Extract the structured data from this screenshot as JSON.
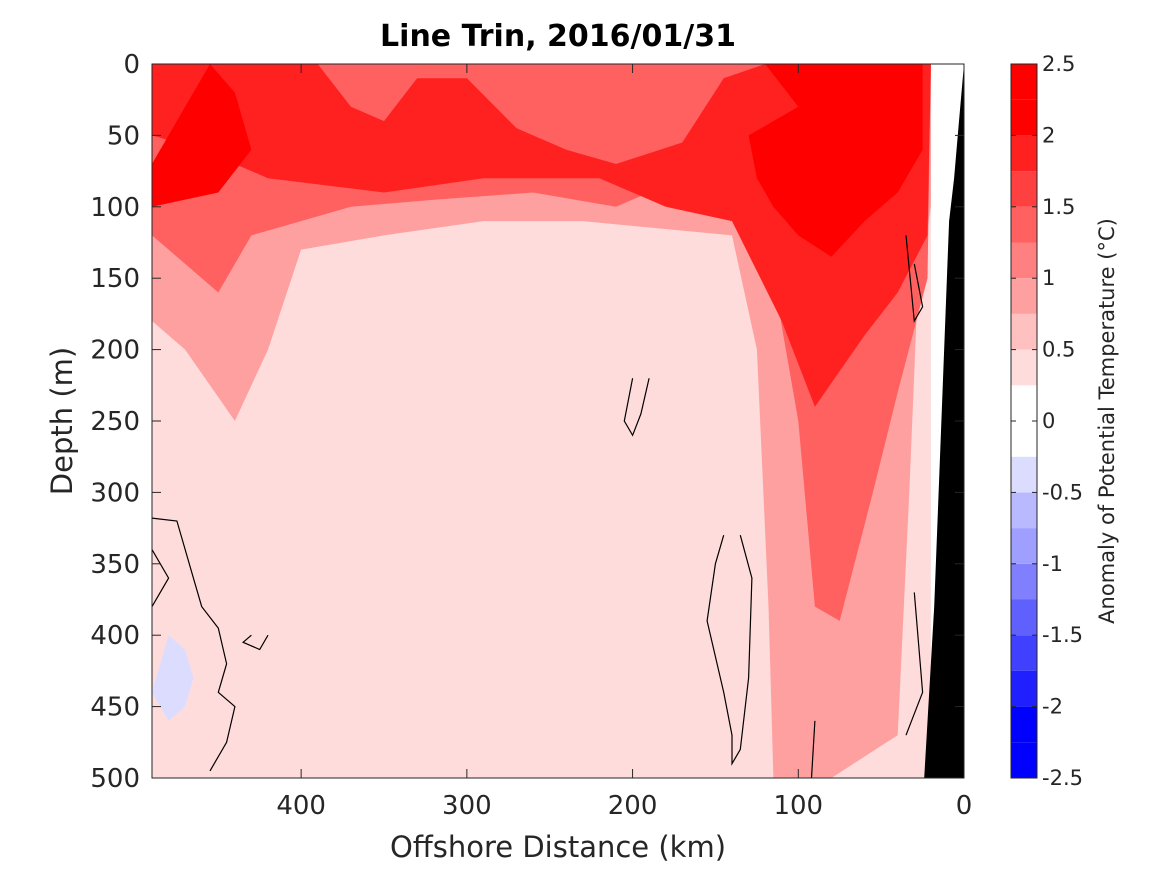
{
  "chart_data": {
    "type": "heatmap",
    "title": "Line Trin, 2016/01/31",
    "xlabel": "Offshore Distance (km)",
    "ylabel": "Depth (m)",
    "colorbar_label": "Anomaly of Potential Temperature (°C)",
    "xlim": [
      490,
      0
    ],
    "ylim": [
      0,
      500
    ],
    "x_reversed": true,
    "y_reversed": true,
    "x_ticks": [
      "400",
      "300",
      "200",
      "100",
      "0"
    ],
    "x_tick_values": [
      400,
      300,
      200,
      100,
      0
    ],
    "y_ticks": [
      "0",
      "50",
      "100",
      "150",
      "200",
      "250",
      "300",
      "350",
      "400",
      "450",
      "500"
    ],
    "y_tick_values": [
      0,
      50,
      100,
      150,
      200,
      250,
      300,
      350,
      400,
      450,
      500
    ],
    "colorbar_ticks": [
      "2.5",
      "2",
      "1.5",
      "1",
      "0.5",
      "0",
      "-0.5",
      "-1",
      "-1.5",
      "-2",
      "-2.5"
    ],
    "colorbar_tick_values": [
      2.5,
      2,
      1.5,
      1,
      0.5,
      0,
      -0.5,
      -1,
      -1.5,
      -2,
      -2.5
    ],
    "colorbar_limits": [
      -2.5,
      2.5
    ],
    "contour_levels": [
      -2.5,
      -2.25,
      -2,
      -1.75,
      -1.5,
      -1.25,
      -1,
      -0.75,
      -0.5,
      -0.25,
      0.25,
      0.5,
      0.75,
      1,
      1.25,
      1.5,
      1.75,
      2,
      2.25,
      2.5
    ],
    "colors": {
      "neg": [
        "#0000ff",
        "#2020ff",
        "#4040ff",
        "#6060ff",
        "#8080ff",
        "#9f9fff",
        "#b9b9ff",
        "#dcdcff"
      ],
      "zero": "#ffffff",
      "pos": [
        "#ffdcdc",
        "#ffc0c0",
        "#ffa0a0",
        "#ff8080",
        "#ff6060",
        "#ff4040",
        "#ff2020",
        "#ff0000"
      ],
      "bathymetry": "#000000"
    },
    "regions": [
      {
        "level": 0.25,
        "points": [
          [
            490,
            0
          ],
          [
            20,
            0
          ],
          [
            20,
            500
          ],
          [
            490,
            500
          ]
        ]
      },
      {
        "level": 0.75,
        "points": [
          [
            490,
            0
          ],
          [
            20,
            0
          ],
          [
            20,
            100
          ],
          [
            28,
            160
          ],
          [
            33,
            300
          ],
          [
            40,
            470
          ],
          [
            80,
            500
          ],
          [
            115,
            500
          ],
          [
            118,
            380
          ],
          [
            125,
            200
          ],
          [
            140,
            120
          ],
          [
            230,
            110
          ],
          [
            290,
            110
          ],
          [
            350,
            120
          ],
          [
            400,
            130
          ],
          [
            420,
            200
          ],
          [
            440,
            250
          ],
          [
            470,
            200
          ],
          [
            490,
            180
          ]
        ]
      },
      {
        "level": 1.25,
        "points": [
          [
            490,
            0
          ],
          [
            20,
            0
          ],
          [
            22,
            150
          ],
          [
            40,
            230
          ],
          [
            55,
            300
          ],
          [
            75,
            390
          ],
          [
            90,
            380
          ],
          [
            100,
            250
          ],
          [
            115,
            150
          ],
          [
            140,
            90
          ],
          [
            170,
            80
          ],
          [
            210,
            100
          ],
          [
            260,
            90
          ],
          [
            320,
            95
          ],
          [
            370,
            100
          ],
          [
            430,
            120
          ],
          [
            450,
            160
          ],
          [
            480,
            130
          ],
          [
            490,
            120
          ]
        ]
      },
      {
        "level": 1.75,
        "points": [
          [
            490,
            0
          ],
          [
            390,
            0
          ],
          [
            370,
            30
          ],
          [
            350,
            40
          ],
          [
            330,
            10
          ],
          [
            300,
            10
          ],
          [
            270,
            45
          ],
          [
            240,
            60
          ],
          [
            210,
            70
          ],
          [
            170,
            55
          ],
          [
            145,
            10
          ],
          [
            120,
            0
          ],
          [
            20,
            0
          ],
          [
            22,
            120
          ],
          [
            40,
            160
          ],
          [
            60,
            190
          ],
          [
            90,
            240
          ],
          [
            110,
            180
          ],
          [
            140,
            110
          ],
          [
            180,
            100
          ],
          [
            220,
            80
          ],
          [
            290,
            80
          ],
          [
            350,
            90
          ],
          [
            420,
            80
          ],
          [
            460,
            60
          ],
          [
            490,
            50
          ]
        ]
      },
      {
        "level": 2.25,
        "points": [
          [
            455,
            0
          ],
          [
            470,
            30
          ],
          [
            490,
            70
          ],
          [
            490,
            100
          ],
          [
            450,
            90
          ],
          [
            430,
            60
          ],
          [
            440,
            20
          ]
        ]
      },
      {
        "level": 2.25,
        "points": [
          [
            120,
            0
          ],
          [
            100,
            30
          ],
          [
            130,
            50
          ],
          [
            125,
            80
          ],
          [
            115,
            100
          ],
          [
            100,
            120
          ],
          [
            80,
            135
          ],
          [
            60,
            110
          ],
          [
            40,
            90
          ],
          [
            25,
            60
          ],
          [
            25,
            0
          ]
        ]
      }
    ],
    "negative_patches": [
      {
        "level": -0.375,
        "points": [
          [
            480,
            400
          ],
          [
            470,
            410
          ],
          [
            465,
            430
          ],
          [
            470,
            450
          ],
          [
            480,
            460
          ],
          [
            490,
            440
          ]
        ]
      }
    ],
    "zero_contours": [
      [
        [
          490,
          318
        ],
        [
          475,
          320
        ],
        [
          465,
          360
        ],
        [
          460,
          380
        ],
        [
          450,
          395
        ],
        [
          445,
          420
        ],
        [
          450,
          440
        ],
        [
          440,
          450
        ],
        [
          445,
          475
        ],
        [
          455,
          495
        ]
      ],
      [
        [
          90,
          460
        ],
        [
          92,
          500
        ]
      ],
      [
        [
          145,
          330
        ],
        [
          150,
          350
        ],
        [
          155,
          390
        ],
        [
          145,
          440
        ],
        [
          140,
          470
        ],
        [
          140,
          490
        ],
        [
          135,
          480
        ],
        [
          130,
          430
        ],
        [
          128,
          360
        ],
        [
          135,
          330
        ]
      ],
      [
        [
          200,
          220
        ],
        [
          205,
          250
        ],
        [
          200,
          260
        ],
        [
          195,
          245
        ],
        [
          190,
          220
        ]
      ],
      [
        [
          430,
          400
        ],
        [
          435,
          405
        ],
        [
          425,
          410
        ],
        [
          420,
          400
        ]
      ],
      [
        [
          35,
          120
        ],
        [
          30,
          180
        ],
        [
          25,
          170
        ],
        [
          30,
          140
        ]
      ],
      [
        [
          30,
          370
        ],
        [
          25,
          440
        ],
        [
          35,
          470
        ]
      ],
      [
        [
          490,
          340
        ],
        [
          480,
          360
        ],
        [
          490,
          380
        ]
      ]
    ],
    "bathymetry": [
      [
        0,
        0
      ],
      [
        3,
        40
      ],
      [
        6,
        80
      ],
      [
        9,
        110
      ],
      [
        13,
        230
      ],
      [
        18,
        380
      ],
      [
        24,
        500
      ],
      [
        0,
        500
      ]
    ]
  }
}
